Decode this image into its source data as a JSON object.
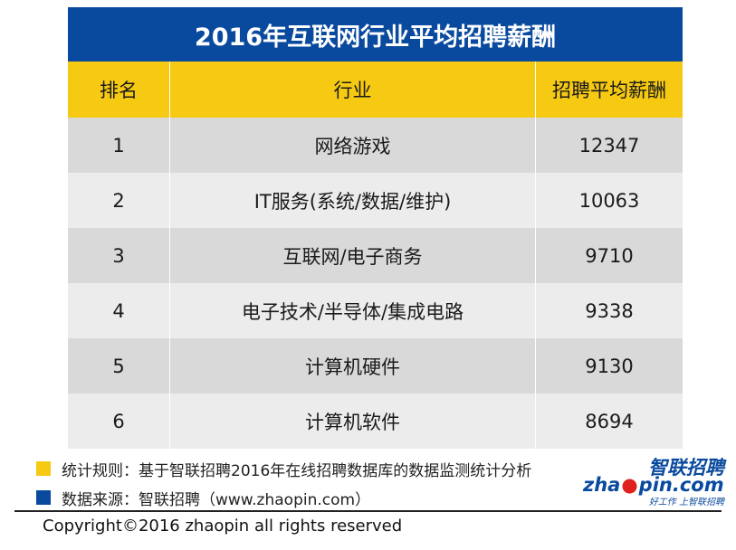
{
  "colors": {
    "title_bg": "#0a4a9e",
    "header_bg": "#f6c913",
    "row_odd": "#d9d9d9",
    "row_even": "#ececec",
    "note_yellow": "#f6c913",
    "note_blue": "#0a4a9e",
    "logo_blue": "#0a4a9e",
    "logo_red": "#e0201e"
  },
  "chart_data": {
    "type": "table",
    "title": "2016年互联网行业平均招聘薪酬",
    "columns": [
      "排名",
      "行业",
      "招聘平均薪酬"
    ],
    "rows": [
      [
        "1",
        "网络游戏",
        "12347"
      ],
      [
        "2",
        "IT服务(系统/数据/维护)",
        "10063"
      ],
      [
        "3",
        "互联网/电子商务",
        "9710"
      ],
      [
        "4",
        "电子技术/半导体/集成电路",
        "9338"
      ],
      [
        "5",
        "计算机硬件",
        "9130"
      ],
      [
        "6",
        "计算机软件",
        "8694"
      ]
    ]
  },
  "notes": {
    "rule": "统计规则：基于智联招聘2016年在线招聘数据库的数据监测统计分析",
    "source": "数据来源：智联招聘（www.zhaopin.com）"
  },
  "logo": {
    "cn": "智联招聘",
    "en_left": "zha",
    "en_right": "pin.com",
    "slogan": "好工作 上智联招聘"
  },
  "footer": {
    "copyright": "Copyright©2016 zhaopin all rights reserved"
  }
}
